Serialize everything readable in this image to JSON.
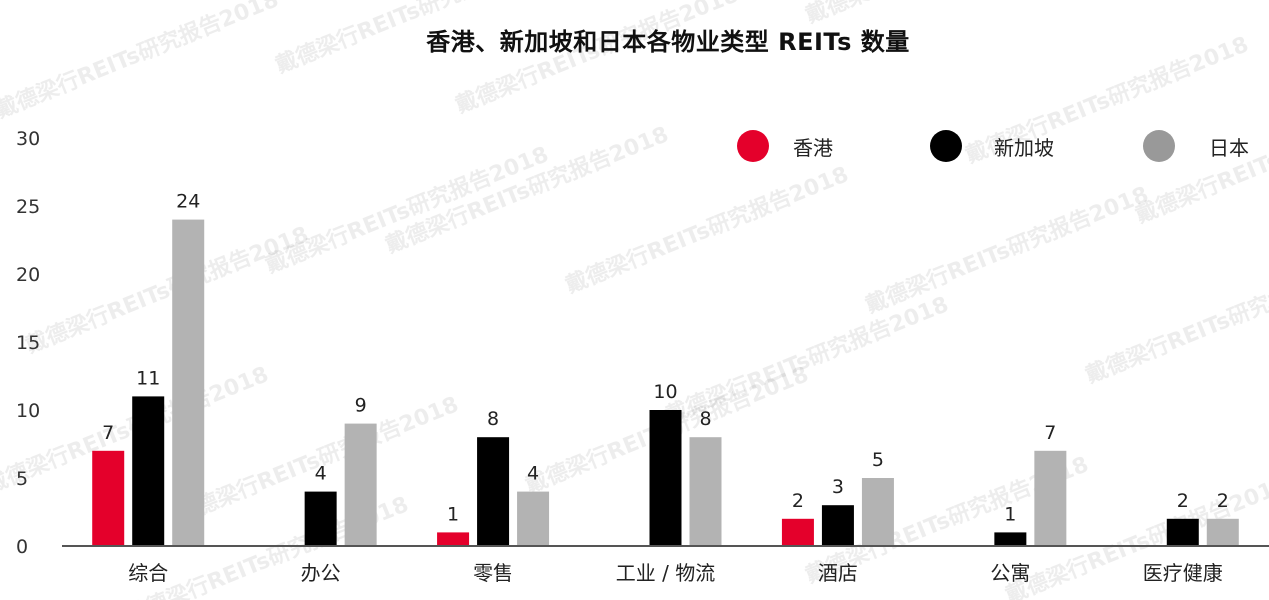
{
  "watermark_text": "戴德梁行REITs研究报告2018",
  "chart_data": {
    "type": "bar",
    "title": "香港、新加坡和日本各物业类型 REITs 数量",
    "xlabel": "",
    "ylabel": "",
    "ylim": [
      0,
      30
    ],
    "yticks": [
      0,
      5,
      10,
      15,
      20,
      25,
      30
    ],
    "grid": false,
    "legend_position": "top-right",
    "categories": [
      "综合",
      "办公",
      "零售",
      "工业 / 物流",
      "酒店",
      "公寓",
      "医疗健康"
    ],
    "series": [
      {
        "name": "香港",
        "color": "#e4002b",
        "values": [
          7,
          null,
          1,
          null,
          2,
          null,
          null
        ]
      },
      {
        "name": "新加坡",
        "color": "#000000",
        "values": [
          11,
          4,
          8,
          10,
          3,
          1,
          2
        ]
      },
      {
        "name": "日本",
        "color": "#b3b3b3",
        "values": [
          24,
          9,
          4,
          8,
          5,
          7,
          2
        ]
      }
    ]
  }
}
